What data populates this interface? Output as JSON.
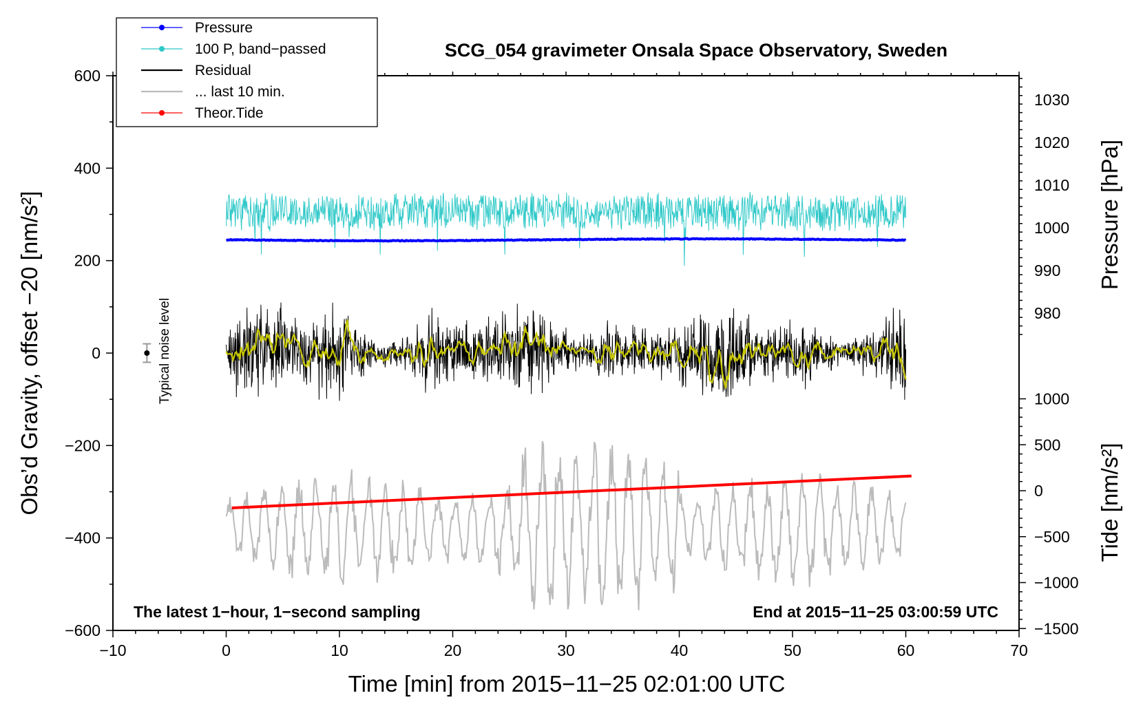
{
  "chart_data": {
    "type": "line",
    "title": "SCG_054 gravimeter Onsala Space Observatory, Sweden",
    "xlabel": "Time [min] from 2015−11−25 02:01:00 UTC",
    "ylabel_left": "Obs’d Gravity, offset −20 [nm/s²]",
    "ylabel_right_top": "Pressure [hPa]",
    "ylabel_right_bottom": "Tide [nm/s²]",
    "xlim": [
      -10,
      70
    ],
    "ylim": [
      -600,
      600
    ],
    "x_ticks": [
      "−10",
      "0",
      "10",
      "20",
      "30",
      "40",
      "50",
      "60",
      "70"
    ],
    "x_tick_values": [
      -10,
      0,
      10,
      20,
      30,
      40,
      50,
      60,
      70
    ],
    "y_ticks": [
      "600",
      "400",
      "200",
      "0",
      "−200",
      "−400",
      "−600"
    ],
    "y_tick_values": [
      600,
      400,
      200,
      0,
      -200,
      -400,
      -600
    ],
    "pressure_axis": {
      "ticks": [
        "1030",
        "1020",
        "1010",
        "1000",
        "990",
        "980"
      ],
      "tick_values": [
        1030,
        1020,
        1010,
        1000,
        990,
        980
      ]
    },
    "tide_axis": {
      "ticks": [
        "1000",
        "500",
        "0",
        "−500",
        "−1000",
        "−1500"
      ],
      "tick_values": [
        1000,
        500,
        0,
        -500,
        -1000,
        -1500
      ]
    },
    "annotations": {
      "left_note": "The latest 1−hour, 1−second sampling",
      "right_note": "End at 2015−11−25 03:00:59 UTC",
      "noise_label": "Typical noise level"
    },
    "noise_marker": {
      "x": -7,
      "y": 0,
      "err": 20
    },
    "legend": [
      {
        "name": "Pressure",
        "color": "#0000ff",
        "marker": true
      },
      {
        "name": "100 P, band−passed",
        "color": "#2ec8c8",
        "marker": true
      },
      {
        "name": "Residual",
        "color": "#000000",
        "marker": false
      },
      {
        "name": "... last 10 min.",
        "color": "#bbbbbb",
        "marker": false
      },
      {
        "name": "Theor.Tide",
        "color": "#ff0000",
        "marker": true
      }
    ],
    "series": [
      {
        "name": "Pressure",
        "color": "#0000ff",
        "x_range": [
          0,
          60
        ],
        "approx_level": 245,
        "description": "nearly flat near 997 hPa"
      },
      {
        "name": "100 P, band−passed",
        "color": "#2ec8c8",
        "x_range": [
          0,
          60
        ],
        "approx_mean": 305,
        "approx_amplitude": 40
      },
      {
        "name": "Residual",
        "color": "#000000",
        "x_range": [
          0,
          60
        ],
        "approx_mean": 0,
        "approx_amplitude": 110
      },
      {
        "name": "Residual (smoothed)",
        "color": "#c8c800",
        "x_range": [
          0,
          60
        ],
        "approx_mean": 0,
        "approx_amplitude": 55
      },
      {
        "name": "... last 10 min.",
        "color": "#bbbbbb",
        "x_range": [
          0,
          60
        ],
        "approx_mean": -380,
        "approx_amplitude": 110
      },
      {
        "name": "Theor.Tide",
        "color": "#ff0000",
        "x": [
          0.5,
          60.5
        ],
        "y": [
          -335,
          -266
        ]
      }
    ]
  }
}
